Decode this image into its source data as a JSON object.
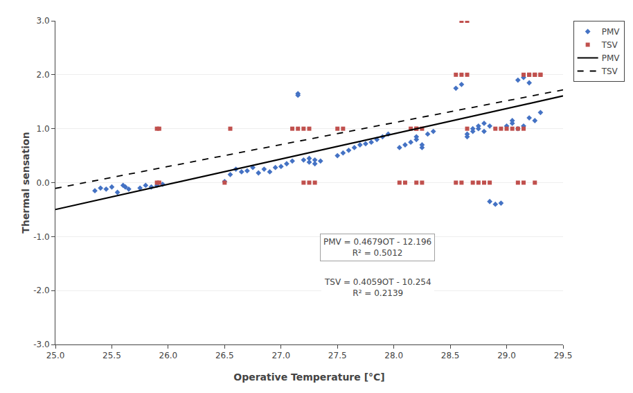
{
  "chart_data": {
    "type": "scatter",
    "xlabel": "Operative Temperature [°C]",
    "ylabel": "Thermal sensation",
    "xlim": [
      25.0,
      29.5
    ],
    "ylim": [
      -3.0,
      3.0
    ],
    "xticks": [
      {
        "value": 25.0,
        "label": "25.0"
      },
      25.5,
      {
        "value": 26.0,
        "label": "26.0"
      },
      26.5,
      {
        "value": 27.0,
        "label": "27.0"
      },
      27.5,
      {
        "value": 28.0,
        "label": "28.0"
      },
      28.5,
      {
        "value": 29.0,
        "label": "29.0"
      },
      29.5
    ],
    "yticks": [
      {
        "value": -3.0,
        "label": "-3.0"
      },
      {
        "value": -2.0,
        "label": "-2.0"
      },
      {
        "value": -1.0,
        "label": "-1.0"
      },
      {
        "value": 0.0,
        "label": "0.0"
      },
      {
        "value": 1.0,
        "label": "1.0"
      },
      {
        "value": 2.0,
        "label": "2.0"
      },
      {
        "value": 3.0,
        "label": "3.0"
      }
    ],
    "grid": "y",
    "legend": "upper right",
    "series": [
      {
        "name": "PMV",
        "type": "scatter",
        "marker": "diamond",
        "color": "#4472C4",
        "x": [
          25.35,
          25.4,
          25.45,
          25.5,
          25.55,
          25.6,
          25.62,
          25.65,
          25.75,
          25.8,
          25.85,
          25.9,
          25.95,
          26.5,
          26.55,
          26.6,
          26.65,
          26.7,
          26.75,
          26.8,
          26.85,
          26.9,
          26.95,
          27.0,
          27.05,
          27.1,
          27.15,
          27.15,
          27.2,
          27.25,
          27.25,
          27.3,
          27.3,
          27.35,
          27.5,
          27.55,
          27.6,
          27.65,
          27.7,
          27.75,
          27.8,
          27.85,
          27.9,
          27.95,
          28.05,
          28.1,
          28.15,
          28.2,
          28.2,
          28.25,
          28.25,
          28.3,
          28.35,
          28.55,
          28.6,
          28.65,
          28.65,
          28.7,
          28.7,
          28.75,
          28.75,
          28.8,
          28.8,
          28.85,
          28.85,
          28.9,
          28.95,
          29.0,
          29.05,
          29.05,
          29.1,
          29.15,
          29.2,
          29.25,
          29.3,
          29.1,
          29.15,
          29.2
        ],
        "values": [
          -0.15,
          -0.1,
          -0.12,
          -0.08,
          -0.18,
          -0.05,
          -0.08,
          -0.12,
          -0.1,
          -0.05,
          -0.08,
          -0.05,
          -0.03,
          0.02,
          0.15,
          0.25,
          0.2,
          0.22,
          0.28,
          0.18,
          0.25,
          0.2,
          0.28,
          0.3,
          0.35,
          0.4,
          1.65,
          1.62,
          0.42,
          0.38,
          0.45,
          0.35,
          0.42,
          0.4,
          0.5,
          0.55,
          0.6,
          0.65,
          0.7,
          0.72,
          0.75,
          0.8,
          0.85,
          0.9,
          0.65,
          0.7,
          0.75,
          0.8,
          0.85,
          0.65,
          0.7,
          0.9,
          0.95,
          1.75,
          1.82,
          0.85,
          0.9,
          0.95,
          1.0,
          1.05,
          1.0,
          0.95,
          1.1,
          1.05,
          -0.35,
          -0.4,
          -0.38,
          1.05,
          1.1,
          1.15,
          1.0,
          1.05,
          1.2,
          1.15,
          1.3,
          1.9,
          1.95,
          1.85
        ]
      },
      {
        "name": "TSV",
        "type": "scatter",
        "marker": "square",
        "color": "#C0504D",
        "x": [
          25.9,
          25.92,
          25.9,
          25.92,
          26.5,
          26.55,
          27.1,
          27.15,
          27.2,
          27.25,
          27.3,
          27.5,
          27.55,
          27.2,
          27.25,
          28.05,
          28.1,
          28.15,
          28.2,
          28.2,
          28.25,
          28.55,
          28.6,
          28.65,
          28.65,
          28.7,
          28.75,
          28.8,
          28.85,
          28.9,
          28.95,
          29.0,
          29.05,
          29.1,
          29.15,
          29.15,
          29.2,
          29.25,
          29.3,
          28.6,
          28.65,
          29.2,
          29.25,
          28.2,
          28.25,
          29.1,
          29.15,
          28.55,
          28.6,
          29.3,
          29.25
        ],
        "values": [
          1.0,
          1.0,
          0.0,
          0.0,
          0.0,
          1.0,
          1.0,
          1.0,
          0.0,
          0.0,
          0.0,
          1.0,
          1.0,
          1.0,
          1.0,
          0.0,
          0.0,
          1.0,
          1.0,
          0.0,
          0.0,
          2.0,
          2.0,
          2.0,
          1.0,
          0.0,
          0.0,
          0.0,
          0.0,
          1.0,
          1.0,
          1.0,
          1.0,
          1.0,
          1.0,
          2.0,
          2.0,
          2.0,
          2.0,
          3.0,
          3.0,
          2.0,
          2.0,
          1.0,
          1.0,
          0.0,
          0.0,
          0.0,
          0.0,
          2.0,
          0.0
        ]
      },
      {
        "name": "PMV",
        "type": "line",
        "line_style": "solid",
        "color": "#000000",
        "x": [
          25.0,
          29.5
        ],
        "values": [
          -0.4985,
          1.60705
        ]
      },
      {
        "name": "TSV",
        "type": "line",
        "line_style": "dashed",
        "color": "#000000",
        "x": [
          25.0,
          29.5
        ],
        "values": [
          -0.1065,
          1.72005
        ]
      }
    ],
    "annotations": [
      "PMV = 0.4679OT - 12.196\nR² = 0.5012",
      "TSV = 0.4059OT - 10.254\nR² = 0.2139"
    ]
  }
}
